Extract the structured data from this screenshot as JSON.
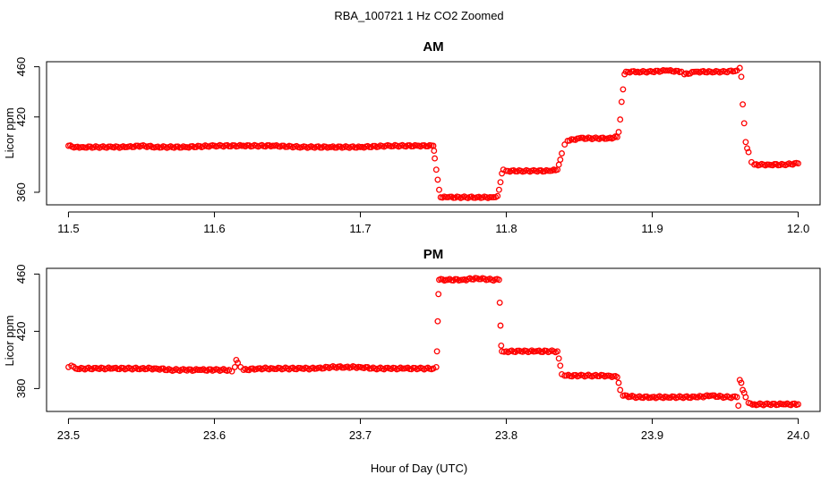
{
  "figure": {
    "title": "RBA_100721  1 Hz CO2 Zoomed",
    "xlabel": "Hour of Day (UTC)"
  },
  "chart_data": [
    {
      "type": "scatter",
      "title": "AM",
      "ylabel": "Licor ppm",
      "xlim": [
        11.485,
        12.015
      ],
      "ylim": [
        350,
        464
      ],
      "xticks": [
        11.5,
        11.6,
        11.7,
        11.8,
        11.9,
        12.0
      ],
      "xtick_labels": [
        "11.5",
        "11.6",
        "11.7",
        "11.8",
        "11.9",
        "12.0"
      ],
      "yticks": [
        360,
        420,
        460
      ],
      "ytick_labels": [
        "360",
        "420",
        "460"
      ],
      "point_color": "#ff0000",
      "series": [
        {
          "points": [
            [
              11.5,
              397
            ],
            [
              11.505,
              396
            ],
            [
              11.51,
              396
            ],
            [
              11.52,
              396
            ],
            [
              11.53,
              396
            ],
            [
              11.54,
              396
            ],
            [
              11.55,
              397
            ],
            [
              11.56,
              396
            ],
            [
              11.58,
              396
            ],
            [
              11.6,
              397
            ],
            [
              11.62,
              397
            ],
            [
              11.64,
              397
            ],
            [
              11.66,
              396
            ],
            [
              11.68,
              396
            ],
            [
              11.7,
              396
            ],
            [
              11.72,
              397
            ],
            [
              11.74,
              397
            ],
            [
              11.75,
              397
            ],
            [
              11.7505,
              393
            ],
            [
              11.751,
              387
            ],
            [
              11.752,
              378
            ],
            [
              11.753,
              370
            ],
            [
              11.754,
              362
            ],
            [
              11.755,
              356
            ],
            [
              11.76,
              356
            ],
            [
              11.77,
              356
            ],
            [
              11.78,
              356
            ],
            [
              11.79,
              356
            ],
            [
              11.794,
              357
            ],
            [
              11.795,
              362
            ],
            [
              11.796,
              368
            ],
            [
              11.797,
              375
            ],
            [
              11.798,
              378
            ],
            [
              11.8,
              377
            ],
            [
              11.81,
              377
            ],
            [
              11.82,
              377
            ],
            [
              11.83,
              377
            ],
            [
              11.835,
              378
            ],
            [
              11.836,
              382
            ],
            [
              11.837,
              386
            ],
            [
              11.838,
              391
            ],
            [
              11.84,
              398
            ],
            [
              11.842,
              401
            ],
            [
              11.85,
              403
            ],
            [
              11.86,
              403
            ],
            [
              11.87,
              403
            ],
            [
              11.876,
              404
            ],
            [
              11.877,
              408
            ],
            [
              11.878,
              418
            ],
            [
              11.879,
              432
            ],
            [
              11.88,
              442
            ],
            [
              11.881,
              454
            ],
            [
              11.882,
              456
            ],
            [
              11.89,
              456
            ],
            [
              11.9,
              456
            ],
            [
              11.91,
              457
            ],
            [
              11.92,
              456
            ],
            [
              11.922,
              454
            ],
            [
              11.93,
              456
            ],
            [
              11.94,
              456
            ],
            [
              11.95,
              456
            ],
            [
              11.958,
              457
            ],
            [
              11.96,
              459
            ],
            [
              11.961,
              452
            ],
            [
              11.962,
              430
            ],
            [
              11.963,
              415
            ],
            [
              11.964,
              400
            ],
            [
              11.965,
              395
            ],
            [
              11.966,
              392
            ],
            [
              11.968,
              384
            ],
            [
              11.97,
              382
            ],
            [
              11.98,
              382
            ],
            [
              11.99,
              382
            ],
            [
              12.0,
              383
            ]
          ]
        }
      ]
    },
    {
      "type": "scatter",
      "title": "PM",
      "ylabel": "Licor ppm",
      "xlim": [
        23.485,
        24.015
      ],
      "ylim": [
        364,
        464
      ],
      "xticks": [
        23.5,
        23.6,
        23.7,
        23.8,
        23.9,
        24.0
      ],
      "xtick_labels": [
        "23.5",
        "23.6",
        "23.7",
        "23.8",
        "23.9",
        "24.0"
      ],
      "yticks": [
        380,
        420,
        460
      ],
      "ytick_labels": [
        "380",
        "420",
        "460"
      ],
      "point_color": "#ff0000",
      "series": [
        {
          "points": [
            [
              23.5,
              395
            ],
            [
              23.502,
              396
            ],
            [
              23.505,
              394
            ],
            [
              23.51,
              394
            ],
            [
              23.52,
              394
            ],
            [
              23.53,
              394
            ],
            [
              23.54,
              394
            ],
            [
              23.55,
              394
            ],
            [
              23.56,
              394
            ],
            [
              23.57,
              393
            ],
            [
              23.58,
              393
            ],
            [
              23.59,
              393
            ],
            [
              23.6,
              393
            ],
            [
              23.61,
              393
            ],
            [
              23.612,
              392
            ],
            [
              23.614,
              395
            ],
            [
              23.615,
              400
            ],
            [
              23.616,
              398
            ],
            [
              23.618,
              395
            ],
            [
              23.62,
              393
            ],
            [
              23.63,
              394
            ],
            [
              23.64,
              394
            ],
            [
              23.65,
              394
            ],
            [
              23.66,
              394
            ],
            [
              23.67,
              394
            ],
            [
              23.68,
              395
            ],
            [
              23.69,
              395
            ],
            [
              23.7,
              395
            ],
            [
              23.71,
              394
            ],
            [
              23.72,
              394
            ],
            [
              23.73,
              394
            ],
            [
              23.74,
              394
            ],
            [
              23.75,
              394
            ],
            [
              23.752,
              395
            ],
            [
              23.7525,
              406
            ],
            [
              23.753,
              427
            ],
            [
              23.7535,
              446
            ],
            [
              23.754,
              456
            ],
            [
              23.76,
              456
            ],
            [
              23.77,
              456
            ],
            [
              23.78,
              457
            ],
            [
              23.79,
              456
            ],
            [
              23.795,
              456
            ],
            [
              23.7955,
              440
            ],
            [
              23.796,
              424
            ],
            [
              23.7965,
              410
            ],
            [
              23.797,
              406
            ],
            [
              23.8,
              406
            ],
            [
              23.81,
              406
            ],
            [
              23.82,
              406
            ],
            [
              23.83,
              406
            ],
            [
              23.835,
              406
            ],
            [
              23.836,
              401
            ],
            [
              23.837,
              396
            ],
            [
              23.838,
              390
            ],
            [
              23.84,
              389
            ],
            [
              23.85,
              389
            ],
            [
              23.86,
              389
            ],
            [
              23.87,
              389
            ],
            [
              23.876,
              388
            ],
            [
              23.877,
              384
            ],
            [
              23.878,
              379
            ],
            [
              23.88,
              375
            ],
            [
              23.89,
              374
            ],
            [
              23.9,
              374
            ],
            [
              23.91,
              374
            ],
            [
              23.92,
              374
            ],
            [
              23.93,
              374
            ],
            [
              23.94,
              375
            ],
            [
              23.95,
              374
            ],
            [
              23.958,
              374
            ],
            [
              23.959,
              368
            ],
            [
              23.96,
              386
            ],
            [
              23.961,
              384
            ],
            [
              23.962,
              379
            ],
            [
              23.963,
              377
            ],
            [
              23.964,
              374
            ],
            [
              23.966,
              370
            ],
            [
              23.97,
              369
            ],
            [
              23.98,
              369
            ],
            [
              23.99,
              369
            ],
            [
              24.0,
              369
            ]
          ]
        }
      ]
    }
  ]
}
